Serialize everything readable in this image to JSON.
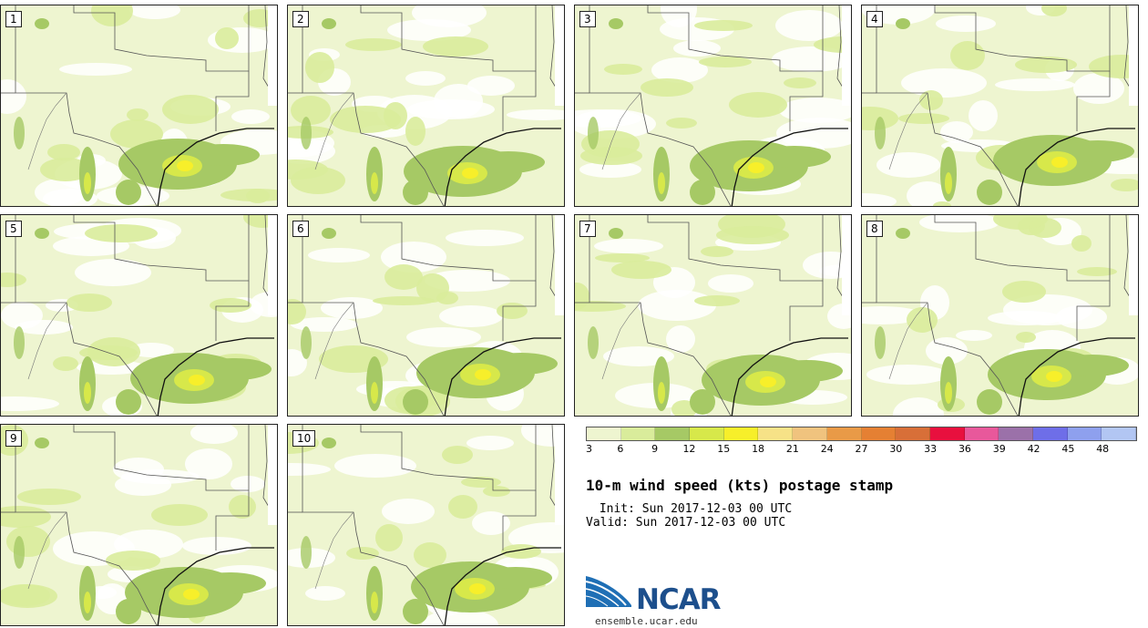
{
  "title": "10-m wind speed (kts) postage stamp",
  "init_line": " Init: Sun 2017-12-03 00 UTC",
  "valid_line": "Valid: Sun 2017-12-03 00 UTC",
  "logo": {
    "org": "NCAR",
    "url": "ensemble.ucar.edu"
  },
  "panels": [
    {
      "label": "1"
    },
    {
      "label": "2"
    },
    {
      "label": "3"
    },
    {
      "label": "4"
    },
    {
      "label": "5"
    },
    {
      "label": "6"
    },
    {
      "label": "7"
    },
    {
      "label": "8"
    },
    {
      "label": "9"
    },
    {
      "label": "10"
    }
  ],
  "colorbar": {
    "colors": [
      "#eef5d0",
      "#d9ec9b",
      "#a6c965",
      "#d7e84a",
      "#f7ef2a",
      "#f6e287",
      "#f0c37e",
      "#e99a47",
      "#e58033",
      "#d86f38",
      "#e8103e",
      "#e8589b",
      "#9b71a9",
      "#6e6ee8",
      "#8ea0ee",
      "#b2c6f3"
    ],
    "tick_labels": [
      "3",
      "6",
      "9",
      "12",
      "15",
      "18",
      "21",
      "24",
      "27",
      "30",
      "33",
      "36",
      "39",
      "42",
      "45",
      "48"
    ]
  }
}
